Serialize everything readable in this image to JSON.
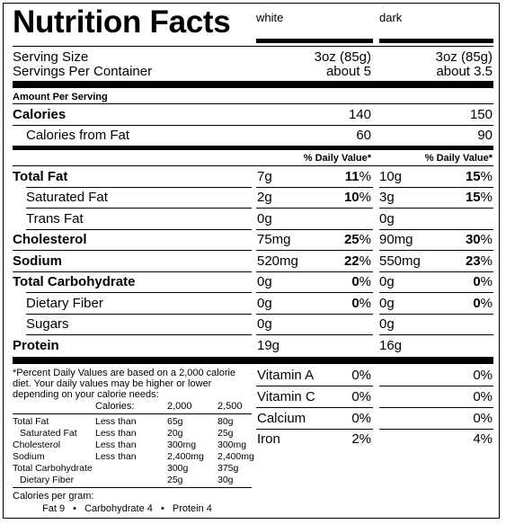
{
  "title": "Nutrition Facts",
  "columns": [
    "white",
    "dark"
  ],
  "serving": {
    "size_label": "Serving Size",
    "per_container_label": "Servings Per Container",
    "size": [
      "3oz (85g)",
      "3oz (85g)"
    ],
    "per_container": [
      "about 5",
      "about 3.5"
    ]
  },
  "amount_per_serving": "Amount Per Serving",
  "calories": {
    "label": "Calories",
    "values": [
      "140",
      "150"
    ]
  },
  "calories_from_fat": {
    "label": "Calories from Fat",
    "values": [
      "60",
      "90"
    ]
  },
  "dv_header": "% Daily Value*",
  "nutrients": [
    {
      "label": "Total Fat",
      "bold": true,
      "indent": false,
      "white": {
        "amount": "7g",
        "dv": "11",
        "pct": "%"
      },
      "dark": {
        "amount": "10g",
        "dv": "15",
        "pct": "%"
      }
    },
    {
      "label": "Saturated Fat",
      "bold": false,
      "indent": true,
      "white": {
        "amount": "2g",
        "dv": "10",
        "pct": "%"
      },
      "dark": {
        "amount": "3g",
        "dv": "15",
        "pct": "%"
      }
    },
    {
      "label": "Trans Fat",
      "bold": false,
      "indent": true,
      "white": {
        "amount": "0g",
        "dv": "",
        "pct": ""
      },
      "dark": {
        "amount": "0g",
        "dv": "",
        "pct": ""
      }
    },
    {
      "label": "Cholesterol",
      "bold": true,
      "indent": false,
      "white": {
        "amount": "75mg",
        "dv": "25",
        "pct": "%"
      },
      "dark": {
        "amount": "90mg",
        "dv": "30",
        "pct": "%"
      }
    },
    {
      "label": "Sodium",
      "bold": true,
      "indent": false,
      "white": {
        "amount": "520mg",
        "dv": "22",
        "pct": "%"
      },
      "dark": {
        "amount": "550mg",
        "dv": "23",
        "pct": "%"
      }
    },
    {
      "label": "Total Carbohydrate",
      "bold": true,
      "indent": false,
      "white": {
        "amount": "0g",
        "dv": "0",
        "pct": "%"
      },
      "dark": {
        "amount": "0g",
        "dv": "0",
        "pct": "%"
      }
    },
    {
      "label": "Dietary Fiber",
      "bold": false,
      "indent": true,
      "white": {
        "amount": "0g",
        "dv": "0",
        "pct": "%"
      },
      "dark": {
        "amount": "0g",
        "dv": "0",
        "pct": "%"
      }
    },
    {
      "label": "Sugars",
      "bold": false,
      "indent": true,
      "white": {
        "amount": "0g",
        "dv": "",
        "pct": ""
      },
      "dark": {
        "amount": "0g",
        "dv": "",
        "pct": ""
      }
    },
    {
      "label": "Protein",
      "bold": true,
      "indent": false,
      "white": {
        "amount": "19g",
        "dv": "",
        "pct": ""
      },
      "dark": {
        "amount": "16g",
        "dv": "",
        "pct": ""
      }
    }
  ],
  "vitamins": [
    {
      "label": "Vitamin A",
      "white": "0%",
      "dark": "0%"
    },
    {
      "label": "Vitamin C",
      "white": "0%",
      "dark": "0%"
    },
    {
      "label": "Calcium",
      "white": "0%",
      "dark": "0%"
    },
    {
      "label": "Iron",
      "white": "2%",
      "dark": "4%"
    }
  ],
  "footnote": {
    "text": [
      "*Percent Daily Values are based on a 2,000 calorie",
      "diet. Your daily values may be higher or lower",
      "depending on your calorie needs:"
    ],
    "calories_label": "Calories:",
    "cal_levels": [
      "2,000",
      "2,500"
    ],
    "rows": [
      {
        "label": "Total Fat",
        "qual": "Less than",
        "v1": "65g",
        "v2": "80g"
      },
      {
        "label": "Saturated Fat",
        "qual": "Less than",
        "v1": "20g",
        "v2": "25g"
      },
      {
        "label": "Cholesterol",
        "qual": "Less than",
        "v1": "300mg",
        "v2": "300mg"
      },
      {
        "label": "Sodium",
        "qual": "Less than",
        "v1": "2,400mg",
        "v2": "2,400mg"
      },
      {
        "label": "Total Carbohydrate",
        "qual": "",
        "v1": "300g",
        "v2": "375g"
      },
      {
        "label": "Dietary Fiber",
        "qual": "",
        "v1": "25g",
        "v2": "30g"
      }
    ],
    "per_gram_label": "Calories per gram:",
    "per_gram": [
      "Fat 9",
      "Carbohydrate 4",
      "Protein 4"
    ],
    "bullet": "•"
  }
}
